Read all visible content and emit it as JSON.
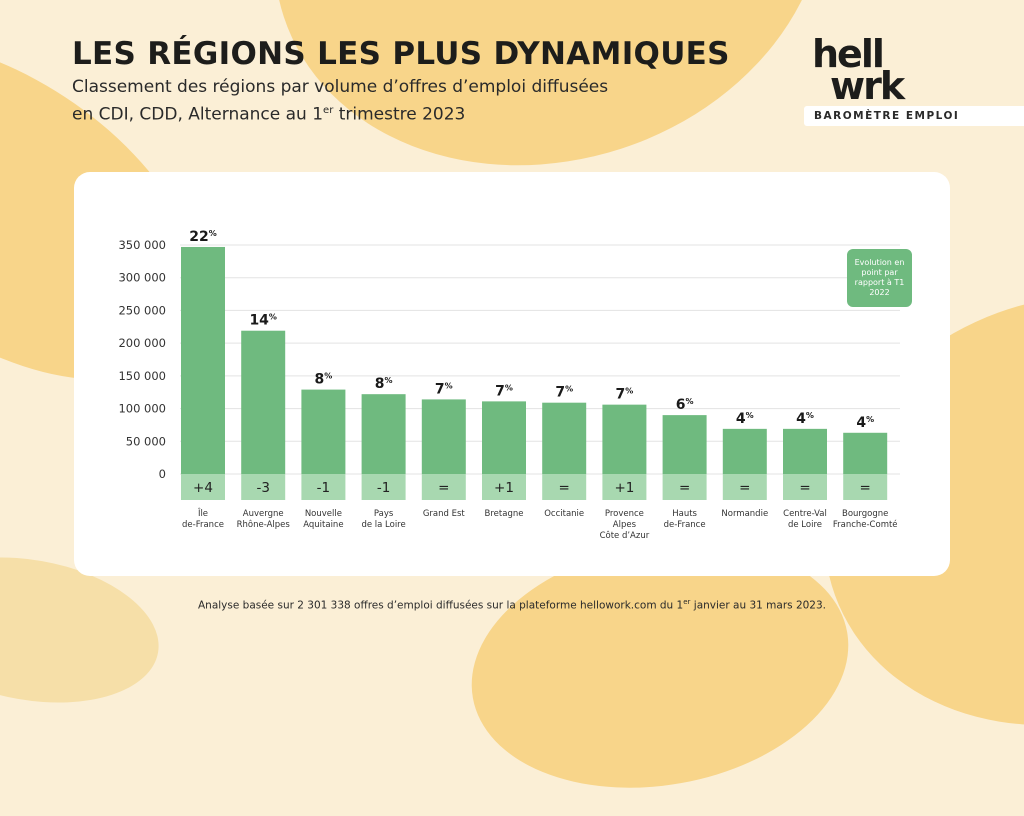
{
  "header": {
    "title": "LES RÉGIONS LES PLUS DYNAMIQUES",
    "subtitle_line1": "Classement des régions par volume d’offres d’emploi diffusées",
    "subtitle_line2_pre": "en CDI, CDD, Alternance au 1",
    "subtitle_line2_sup": "er",
    "subtitle_line2_post": " trimestre 2023"
  },
  "logo": {
    "line1": "hell",
    "line2": "wrk",
    "tagline": "BAROMÈTRE EMPLOI"
  },
  "legend_note": "Evolution en point par rapport à T1 2022",
  "footnote": {
    "pre": "Analyse basée sur 2 301 338 offres d’emploi diffusées sur la plateforme hellowork.com du 1",
    "sup": "er",
    "post": " janvier au 31 mars 2023."
  },
  "colors": {
    "bar": "#6fba7f",
    "change_cell": "#a8d8b0",
    "background": "#fbefd6",
    "accent_blob": "#f8d58a"
  },
  "chart_data": {
    "type": "bar",
    "categories": [
      [
        "Île",
        "de-France"
      ],
      [
        "Auvergne",
        "Rhône-Alpes"
      ],
      [
        "Nouvelle",
        "Aquitaine"
      ],
      [
        "Pays",
        "de la Loire"
      ],
      [
        "Grand Est"
      ],
      [
        "Bretagne"
      ],
      [
        "Occitanie"
      ],
      [
        "Provence",
        "Alpes",
        "Côte d’Azur"
      ],
      [
        "Hauts",
        "de-France"
      ],
      [
        "Normandie"
      ],
      [
        "Centre-Val",
        "de Loire"
      ],
      [
        "Bourgogne",
        "Franche-Comté"
      ]
    ],
    "values": [
      347000,
      219000,
      129000,
      122000,
      114000,
      111000,
      109000,
      106000,
      90000,
      69000,
      69000,
      63000
    ],
    "share_labels": [
      "22",
      "14",
      "8",
      "8",
      "7",
      "7",
      "7",
      "7",
      "6",
      "4",
      "4",
      "4"
    ],
    "share_unit": "%",
    "rank_change": [
      "+4",
      "-3",
      "-1",
      "-1",
      "=",
      "+1",
      "=",
      "+1",
      "=",
      "=",
      "=",
      "="
    ],
    "yticks": [
      0,
      50000,
      100000,
      150000,
      200000,
      250000,
      300000,
      350000
    ],
    "ytick_labels": [
      "0",
      "50 000",
      "100 000",
      "150 000",
      "200 000",
      "250 000",
      "300 000",
      "350 000"
    ],
    "ylim": [
      0,
      350000
    ],
    "grid": true
  }
}
